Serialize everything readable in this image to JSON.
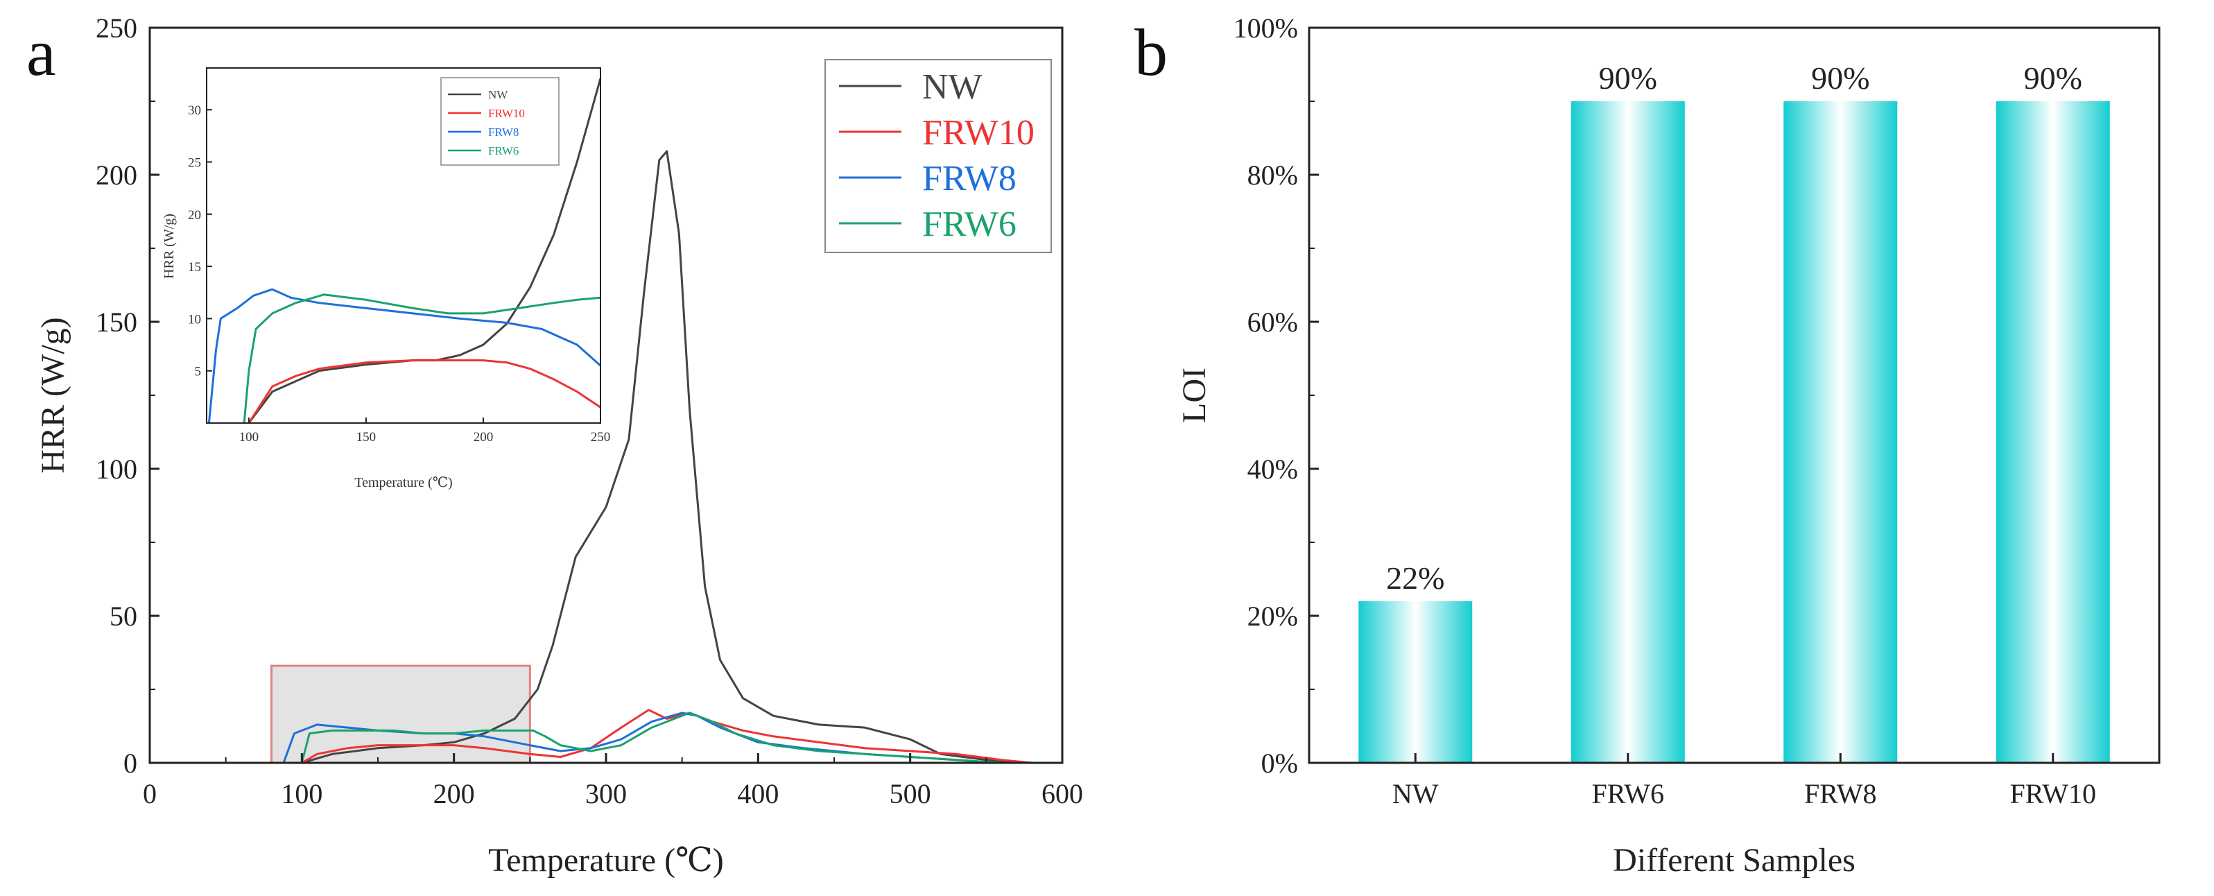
{
  "panel_a_letter": "a",
  "panel_b_letter": "b",
  "colors": {
    "NW": "#444444",
    "FRW10": "#ee3333",
    "FRW8": "#1f6fdc",
    "FRW6": "#1aa36b",
    "bar": "#14cdd0",
    "zoom_box": "#e58080"
  },
  "chart_data": [
    {
      "type": "line",
      "panel": "a",
      "xlabel": "Temperature (℃)",
      "ylabel": "HRR (W/g)",
      "xlim": [
        0,
        600
      ],
      "ylim": [
        0,
        250
      ],
      "xticks": [
        "0",
        "100",
        "200",
        "300",
        "400",
        "500",
        "600"
      ],
      "yticks": [
        "0",
        "50",
        "100",
        "150",
        "200",
        "250"
      ],
      "legend": [
        "NW",
        "FRW10",
        "FRW8",
        "FRW6"
      ],
      "series": [
        {
          "name": "NW",
          "x": [
            100,
            120,
            150,
            180,
            200,
            220,
            240,
            255,
            265,
            280,
            300,
            315,
            325,
            335,
            340,
            348,
            355,
            365,
            375,
            390,
            410,
            440,
            470,
            500,
            520,
            550,
            580
          ],
          "y": [
            0,
            3,
            5,
            6,
            7,
            10,
            15,
            25,
            40,
            70,
            87,
            110,
            160,
            205,
            208,
            180,
            120,
            60,
            35,
            22,
            16,
            13,
            12,
            8,
            3,
            1,
            0
          ]
        },
        {
          "name": "FRW10",
          "x": [
            100,
            110,
            130,
            150,
            180,
            200,
            220,
            250,
            270,
            290,
            310,
            328,
            340,
            355,
            370,
            390,
            410,
            440,
            470,
            500,
            530,
            560,
            580
          ],
          "y": [
            0,
            3,
            5,
            6,
            6,
            6,
            5,
            3,
            2,
            5,
            12,
            18,
            15,
            17,
            14,
            11,
            9,
            7,
            5,
            4,
            3,
            1,
            0
          ]
        },
        {
          "name": "FRW8",
          "x": [
            88,
            95,
            110,
            130,
            150,
            180,
            200,
            220,
            250,
            270,
            290,
            310,
            330,
            350,
            360,
            375,
            400,
            430,
            470,
            500,
            530,
            560
          ],
          "y": [
            0,
            10,
            13,
            12,
            11,
            10,
            10,
            9,
            6,
            4,
            5,
            8,
            14,
            17,
            16,
            12,
            7,
            5,
            3,
            2,
            1,
            0
          ]
        },
        {
          "name": "FRW6",
          "x": [
            100,
            105,
            120,
            140,
            160,
            180,
            200,
            220,
            240,
            252,
            260,
            270,
            290,
            310,
            330,
            355,
            370,
            385,
            410,
            440,
            470,
            500,
            530,
            560
          ],
          "y": [
            0,
            10,
            11,
            11,
            11,
            10,
            10,
            11,
            11,
            11,
            9,
            6,
            4,
            6,
            12,
            17,
            14,
            10,
            6,
            4,
            3,
            2,
            1,
            0
          ]
        }
      ],
      "zoom_region": {
        "x": [
          80,
          250
        ],
        "y": [
          0,
          33
        ]
      },
      "inset": {
        "xlabel": "Temperature (℃)",
        "ylabel": "HRR (W/g)",
        "xlim": [
          82,
          250
        ],
        "ylim": [
          0,
          34
        ],
        "xticks": [
          "100",
          "150",
          "200",
          "250"
        ],
        "yticks": [
          "5",
          "10",
          "15",
          "20",
          "25",
          "30"
        ],
        "legend": [
          "NW",
          "FRW10",
          "FRW8",
          "FRW6"
        ],
        "series": [
          {
            "name": "NW",
            "x": [
              100,
              110,
              120,
              130,
              150,
              170,
              180,
              190,
              200,
              210,
              220,
              230,
              240,
              250
            ],
            "y": [
              0,
              3,
              4,
              5,
              5.6,
              6,
              6,
              6.5,
              7.5,
              9.5,
              13,
              18,
              25,
              33
            ]
          },
          {
            "name": "FRW10",
            "x": [
              100,
              110,
              120,
              130,
              150,
              170,
              185,
              200,
              210,
              220,
              230,
              240,
              250
            ],
            "y": [
              0,
              3.5,
              4.5,
              5.2,
              5.8,
              6,
              6,
              6,
              5.8,
              5.2,
              4.2,
              3,
              1.5
            ]
          },
          {
            "name": "FRW8",
            "x": [
              83,
              86,
              88,
              95,
              102,
              110,
              118,
              130,
              150,
              170,
              190,
              210,
              225,
              240,
              250
            ],
            "y": [
              0,
              7,
              10,
              11,
              12.2,
              12.8,
              12,
              11.5,
              11,
              10.5,
              10,
              9.6,
              9,
              7.5,
              5.5
            ]
          },
          {
            "name": "FRW6",
            "x": [
              98,
              100,
              103,
              110,
              120,
              132,
              150,
              170,
              185,
              200,
              215,
              230,
              240,
              250
            ],
            "y": [
              0,
              5,
              9,
              10.5,
              11.5,
              12.3,
              11.8,
              11,
              10.5,
              10.5,
              11,
              11.5,
              11.8,
              12
            ]
          }
        ]
      }
    },
    {
      "type": "bar",
      "panel": "b",
      "xlabel": "Different Samples",
      "ylabel": "LOI",
      "ylim": [
        0,
        100
      ],
      "yticks": [
        "0%",
        "20%",
        "40%",
        "60%",
        "80%",
        "100%"
      ],
      "categories": [
        "NW",
        "FRW6",
        "FRW8",
        "FRW10"
      ],
      "values": [
        22,
        90,
        90,
        90
      ],
      "value_labels": [
        "22%",
        "90%",
        "90%",
        "90%"
      ]
    }
  ]
}
